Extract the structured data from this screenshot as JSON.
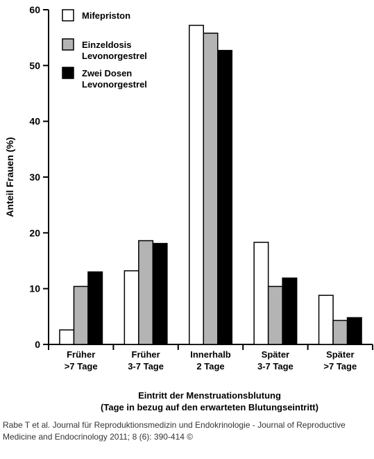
{
  "chart_data": {
    "type": "bar",
    "title": "",
    "ylabel": "Anteil Frauen (%)",
    "xlabel": [
      "Eintritt der Menstruationsblutung",
      "(Tage in bezug auf den erwarteten Blutungseintritt)"
    ],
    "ylim": [
      0,
      60
    ],
    "yticks": [
      0,
      10,
      20,
      30,
      40,
      50,
      60
    ],
    "grid": false,
    "legend_position": "top-left",
    "categories": [
      [
        "Früher",
        ">7 Tage"
      ],
      [
        "Früher",
        "3-7 Tage"
      ],
      [
        "Innerhalb",
        "2 Tage"
      ],
      [
        "Später",
        "3-7 Tage"
      ],
      [
        "Später",
        ">7 Tage"
      ]
    ],
    "series": [
      {
        "name": [
          "Mifepriston"
        ],
        "color": "#ffffff",
        "values": [
          2.6,
          13.2,
          57.2,
          18.3,
          8.8
        ]
      },
      {
        "name": [
          "Einzeldosis",
          "Levonorgestrel"
        ],
        "color": "#b4b4b4",
        "values": [
          10.4,
          18.6,
          55.8,
          10.4,
          4.3
        ]
      },
      {
        "name": [
          "Zwei Dosen",
          "Levonorgestrel"
        ],
        "color": "#000000",
        "values": [
          13.0,
          18.1,
          52.7,
          11.9,
          4.8
        ]
      }
    ]
  },
  "credit": {
    "line1": "Rabe T et al. Journal für Reproduktionsmedizin und Endokrinologie - Journal of Reproductive",
    "line2": "Medicine and Endocrinology 2011; 8 (6): 390-414 ©"
  }
}
